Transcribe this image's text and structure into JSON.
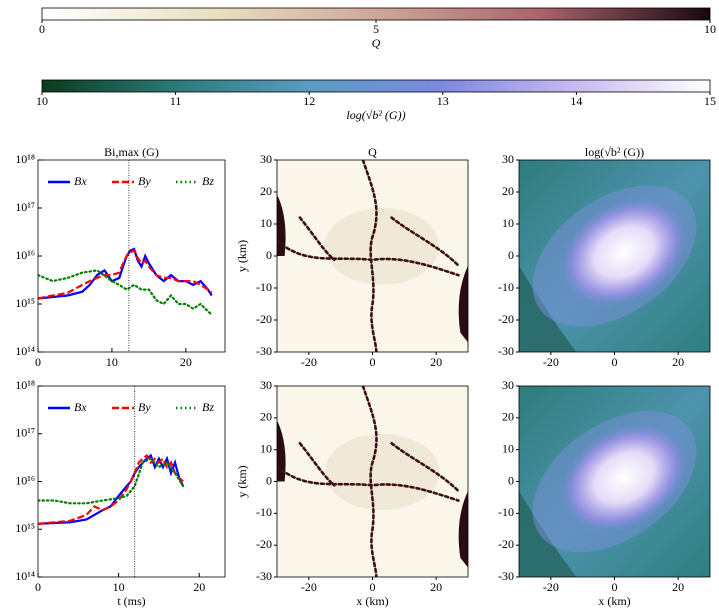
{
  "chart_data": [
    {
      "type": "colorbar",
      "label": "Q",
      "xlim": [
        0,
        10
      ],
      "xticks": [
        0,
        5,
        10
      ],
      "colors": [
        "#ffffff",
        "#e8e2c2",
        "#cfa898",
        "#a8636a",
        "#180810"
      ]
    },
    {
      "type": "colorbar",
      "label": "log(√b² (G))",
      "xlim": [
        10,
        15
      ],
      "xticks": [
        10,
        11,
        12,
        13,
        14,
        15
      ],
      "colors": [
        "#0c3a1e",
        "#2b7a78",
        "#5a9cc2",
        "#7d88e0",
        "#c9baf2",
        "#ffffff"
      ]
    },
    {
      "type": "line",
      "title": "Bi,max (G)",
      "xlim": [
        0,
        25.3
      ],
      "xticks": [
        0,
        10,
        20
      ],
      "log_y": true,
      "ylim": [
        100000000000000.0,
        1e+18
      ],
      "yticks": [
        {
          "value": 100000000000000.0,
          "label": "10¹⁴"
        },
        {
          "value": 1000000000000000.0,
          "label": "10¹⁵"
        },
        {
          "value": 1e+16,
          "label": "10¹⁶"
        },
        {
          "value": 1e+17,
          "label": "10¹⁷"
        },
        {
          "value": 1e+18,
          "label": "10¹⁸"
        }
      ],
      "vline": 12.3,
      "legend": "upper",
      "series": [
        {
          "name": "Bx",
          "color": "#0000ff",
          "style": "solid",
          "x": [
            0,
            2,
            4,
            6,
            7,
            8,
            9,
            10,
            11,
            11.5,
            12,
            12.5,
            13,
            13.5,
            14,
            14.5,
            15,
            16,
            17,
            18,
            19,
            20,
            21,
            22,
            23,
            23.5
          ],
          "values": [
            1300000000000000.0,
            1400000000000000.0,
            1500000000000000.0,
            1800000000000000.0,
            2500000000000000.0,
            4000000000000000.0,
            5000000000000000.0,
            3000000000000000.0,
            3500000000000000.0,
            6000000000000000.0,
            1e+16,
            1.3e+16,
            1.4e+16,
            8000000000000000.0,
            6000000000000000.0,
            1e+16,
            7000000000000000.0,
            4000000000000000.0,
            3000000000000000.0,
            4000000000000000.0,
            3000000000000000.0,
            3000000000000000.0,
            2500000000000000.0,
            3000000000000000.0,
            2000000000000000.0,
            1500000000000000.0
          ]
        },
        {
          "name": "By",
          "color": "#ff0000",
          "style": "dashed",
          "x": [
            0,
            2,
            4,
            6,
            7,
            8,
            9,
            10,
            11,
            11.5,
            12,
            12.5,
            13,
            13.5,
            14,
            14.5,
            15,
            16,
            17,
            18,
            19,
            20,
            21,
            22,
            23,
            23.5
          ],
          "values": [
            1300000000000000.0,
            1500000000000000.0,
            1700000000000000.0,
            2500000000000000.0,
            3000000000000000.0,
            3500000000000000.0,
            4000000000000000.0,
            4000000000000000.0,
            4500000000000000.0,
            7000000000000000.0,
            1e+16,
            1.2e+16,
            1.3e+16,
            9000000000000000.0,
            7000000000000000.0,
            8000000000000000.0,
            6000000000000000.0,
            4000000000000000.0,
            3500000000000000.0,
            3500000000000000.0,
            3000000000000000.0,
            3000000000000000.0,
            3000000000000000.0,
            2500000000000000.0,
            2000000000000000.0,
            1700000000000000.0
          ]
        },
        {
          "name": "Bz",
          "color": "#008000",
          "style": "dotted",
          "x": [
            0,
            2,
            4,
            6,
            8,
            10,
            11,
            12,
            13,
            14,
            15,
            16,
            17,
            18,
            19,
            20,
            21,
            22,
            23,
            23.5
          ],
          "values": [
            4000000000000000.0,
            3000000000000000.0,
            3500000000000000.0,
            4500000000000000.0,
            5000000000000000.0,
            3000000000000000.0,
            2500000000000000.0,
            2000000000000000.0,
            2500000000000000.0,
            2000000000000000.0,
            2000000000000000.0,
            1200000000000000.0,
            1000000000000000.0,
            1500000000000000.0,
            1000000000000000.0,
            1000000000000000.0,
            800000000000000.0,
            1000000000000000.0,
            700000000000000.0,
            600000000000000.0
          ]
        }
      ]
    },
    {
      "type": "heatmap",
      "colormap": "Q",
      "title": "Q",
      "ylabel": "y (km)",
      "xlim": [
        -30,
        30
      ],
      "ylim": [
        -30,
        30
      ],
      "xticks": [
        -20,
        0,
        20
      ],
      "yticks": [
        -30,
        -20,
        -10,
        0,
        10,
        20,
        30
      ]
    },
    {
      "type": "heatmap",
      "colormap": "b",
      "title": "log(√b² (G))",
      "xlim": [
        -30,
        30
      ],
      "ylim": [
        -30,
        30
      ],
      "xticks": [
        -20,
        0,
        20
      ],
      "yticks": [
        -30,
        -20,
        -10,
        0,
        10,
        20,
        30
      ]
    },
    {
      "type": "line",
      "xlabel": "t (ms)",
      "xlim": [
        0,
        23.2
      ],
      "xticks": [
        0,
        10,
        20
      ],
      "log_y": true,
      "ylim": [
        100000000000000.0,
        1e+18
      ],
      "yticks": [
        {
          "value": 100000000000000.0,
          "label": "10¹⁴"
        },
        {
          "value": 1000000000000000.0,
          "label": "10¹⁵"
        },
        {
          "value": 1e+16,
          "label": "10¹⁶"
        },
        {
          "value": 1e+17,
          "label": "10¹⁷"
        },
        {
          "value": 1e+18,
          "label": "10¹⁸"
        }
      ],
      "vline": 12,
      "legend": "upper",
      "series": [
        {
          "name": "Bx",
          "color": "#0000ff",
          "style": "solid",
          "x": [
            0,
            2,
            4,
            6,
            7,
            8,
            9,
            10,
            11,
            11.5,
            12,
            12.5,
            13,
            13.5,
            14,
            14.5,
            15,
            15.5,
            16,
            16.5,
            17,
            17.5,
            18
          ],
          "values": [
            1300000000000000.0,
            1350000000000000.0,
            1400000000000000.0,
            1600000000000000.0,
            2000000000000000.0,
            2500000000000000.0,
            3000000000000000.0,
            5000000000000000.0,
            8000000000000000.0,
            1e+16,
            1.5e+16,
            2e+16,
            2.5e+16,
            3e+16,
            3.5e+16,
            2e+16,
            3e+16,
            2e+16,
            3e+16,
            1.5e+16,
            2.5e+16,
            1.2e+16,
            8000000000000000.0
          ]
        },
        {
          "name": "By",
          "color": "#ff0000",
          "style": "dashed",
          "x": [
            0,
            2,
            4,
            6,
            7,
            8,
            9,
            10,
            11,
            11.5,
            12,
            12.5,
            13,
            13.5,
            14,
            14.5,
            15,
            15.5,
            16,
            16.5,
            17,
            17.5,
            18
          ],
          "values": [
            1300000000000000.0,
            1400000000000000.0,
            1500000000000000.0,
            2000000000000000.0,
            3000000000000000.0,
            2500000000000000.0,
            3000000000000000.0,
            4000000000000000.0,
            7000000000000000.0,
            1e+16,
            1.5e+16,
            2.5e+16,
            3e+16,
            3.5e+16,
            2.5e+16,
            3e+16,
            2.5e+16,
            3e+16,
            2e+16,
            2.5e+16,
            1.5e+16,
            1.2e+16,
            1e+16
          ]
        },
        {
          "name": "Bz",
          "color": "#008000",
          "style": "dotted",
          "x": [
            0,
            2,
            4,
            6,
            8,
            10,
            11,
            12,
            13,
            14,
            15,
            16,
            17,
            18
          ],
          "values": [
            4000000000000000.0,
            4000000000000000.0,
            3500000000000000.0,
            3500000000000000.0,
            4000000000000000.0,
            4500000000000000.0,
            5000000000000000.0,
            8000000000000000.0,
            2.5e+16,
            3e+16,
            2e+16,
            2.5e+16,
            1.5e+16,
            8000000000000000.0
          ]
        }
      ]
    },
    {
      "type": "heatmap",
      "colormap": "Q",
      "xlabel": "x (km)",
      "ylabel": "y (km)",
      "xlim": [
        -30,
        30
      ],
      "ylim": [
        -30,
        30
      ],
      "xticks": [
        -20,
        0,
        20
      ],
      "yticks": [
        -30,
        -20,
        -10,
        0,
        10,
        20,
        30
      ]
    },
    {
      "type": "heatmap",
      "colormap": "b",
      "xlabel": "x (km)",
      "xlim": [
        -30,
        30
      ],
      "ylim": [
        -30,
        30
      ],
      "xticks": [
        -20,
        0,
        20
      ],
      "yticks": [
        -30,
        -20,
        -10,
        0,
        10,
        20,
        30
      ]
    }
  ]
}
